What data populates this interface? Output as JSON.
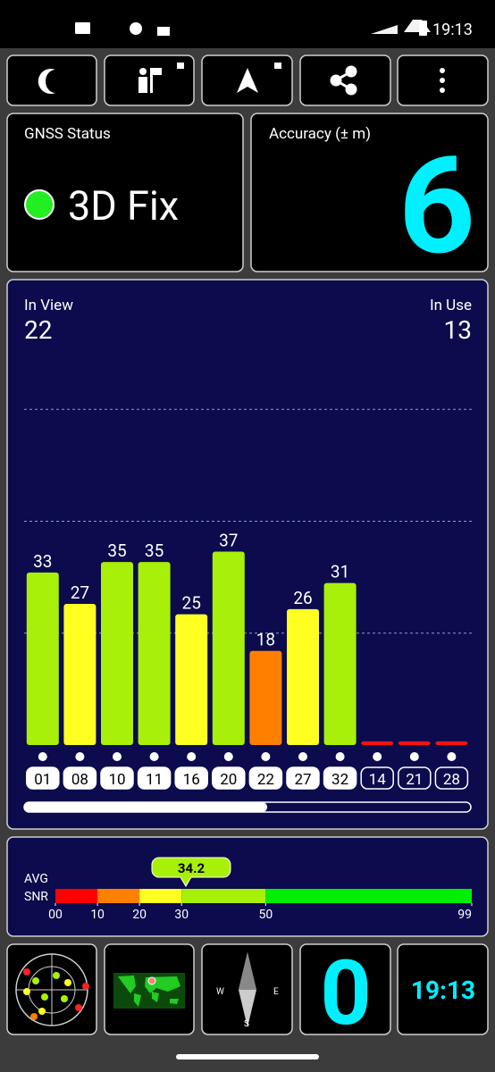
{
  "status_bar": {
    "time": "19:13"
  },
  "gnss_status": {
    "title": "GNSS Status",
    "fix": "3D Fix"
  },
  "accuracy": {
    "title": "Accuracy (± m)",
    "value": 6
  },
  "chart_data": {
    "type": "bar",
    "in_view_label": "In View",
    "in_view": 22,
    "in_use_label": "In Use",
    "in_use": 13,
    "categories": [
      "01",
      "08",
      "10",
      "11",
      "16",
      "20",
      "22",
      "27",
      "32",
      "14",
      "21",
      "28"
    ],
    "values": [
      33,
      27,
      35,
      35,
      25,
      37,
      18,
      26,
      31,
      0.7,
      0.7,
      0.7
    ],
    "value_labels": [
      "33",
      "27",
      "35",
      "35",
      "25",
      "37",
      "18",
      "26",
      "31",
      null,
      null,
      null
    ],
    "colors": [
      "#a8f00a",
      "#ffff22",
      "#a8f00a",
      "#a8f00a",
      "#ffff22",
      "#a8f00a",
      "#ff8000",
      "#ffff22",
      "#a8f00a",
      "#ff1010",
      "#ff1010",
      "#ff1010"
    ],
    "used": [
      true,
      true,
      true,
      true,
      true,
      true,
      true,
      true,
      true,
      false,
      false,
      false
    ],
    "ylim": [
      0,
      85.6
    ],
    "grid_lines": [
      21.4,
      42.8,
      64.2
    ]
  },
  "snr_bar": {
    "labels": [
      "AVG",
      "SNR"
    ],
    "average": 34.2,
    "xlim": [
      0,
      99
    ],
    "xticks": [
      {
        "value": 0,
        "label": "00"
      },
      10,
      20,
      30,
      50,
      99
    ],
    "bands": [
      {
        "from": 0,
        "to": 10,
        "color": "#ff0000"
      },
      {
        "from": 10,
        "to": 20,
        "color": "#ff8000"
      },
      {
        "from": 20,
        "to": 30,
        "color": "#ffff22"
      },
      {
        "from": 30,
        "to": 50,
        "color": "#a8f00a"
      },
      {
        "from": 50,
        "to": 99,
        "color": "#00ee00"
      }
    ]
  },
  "tiles": {
    "compass_labels": [
      "W",
      "E",
      "S"
    ],
    "speed": 0,
    "clock": "19:13"
  }
}
